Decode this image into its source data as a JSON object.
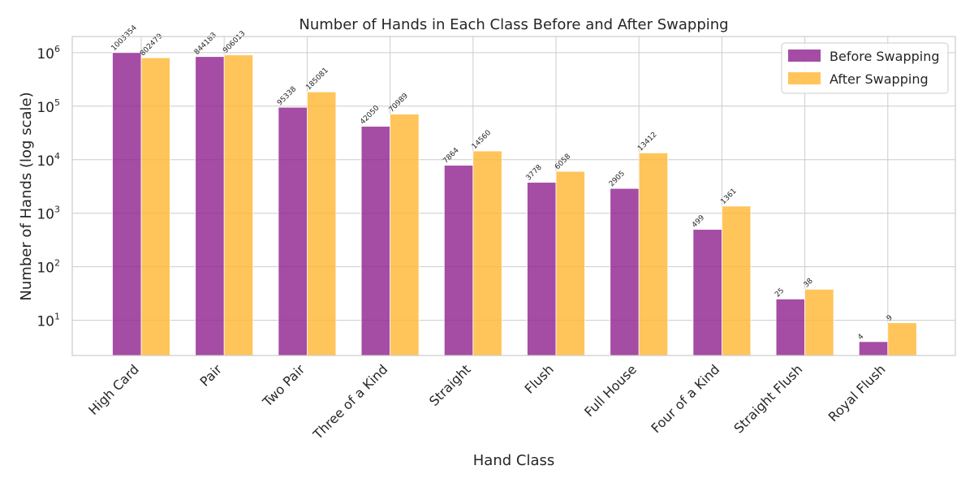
{
  "chart_data": {
    "type": "bar",
    "title": "Number of Hands in Each Class Before and After Swapping",
    "xlabel": "Hand Class",
    "ylabel": "Number of Hands (log scale)",
    "yscale": "log",
    "ylim": [
      2.2,
      2000000
    ],
    "yticks": [
      {
        "base": "10",
        "exp": "1",
        "value": 10
      },
      {
        "base": "10",
        "exp": "2",
        "value": 100
      },
      {
        "base": "10",
        "exp": "3",
        "value": 1000
      },
      {
        "base": "10",
        "exp": "4",
        "value": 10000
      },
      {
        "base": "10",
        "exp": "5",
        "value": 100000
      },
      {
        "base": "10",
        "exp": "6",
        "value": 1000000
      }
    ],
    "grid": true,
    "legend_position": "top-right",
    "categories": [
      "High Card",
      "Pair",
      "Two Pair",
      "Three of a Kind",
      "Straight",
      "Flush",
      "Full House",
      "Four of a Kind",
      "Straight Flush",
      "Royal Flush"
    ],
    "series": [
      {
        "name": "Before Swapping",
        "color": "#8e1f8e",
        "values": [
          1003354,
          844183,
          95338,
          42050,
          7864,
          3778,
          2905,
          499,
          25,
          4
        ],
        "labels": [
          "1003354",
          "844183",
          "95338",
          "42050",
          "7864",
          "3778",
          "2905",
          "499",
          "25",
          "4"
        ]
      },
      {
        "name": "After Swapping",
        "color": "#ffb732",
        "values": [
          802479,
          906013,
          185081,
          70989,
          14560,
          6058,
          13412,
          1361,
          38,
          9
        ],
        "labels": [
          "802479",
          "906013",
          "185081",
          "70989",
          "14560",
          "6058",
          "13412",
          "1361",
          "38",
          "9"
        ]
      }
    ]
  }
}
